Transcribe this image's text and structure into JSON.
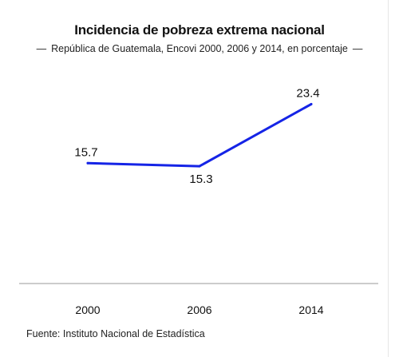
{
  "page": {
    "title": "Incidencia de pobreza extrema nacional",
    "subtitle": "República de Guatemala, Encovi 2000, 2006 y 2014, en porcentaje",
    "subtitle_dash": "—",
    "source": "Fuente: Instituto Nacional de Estadística"
  },
  "chart_data": {
    "type": "line",
    "title": "Incidencia de pobreza extrema nacional",
    "subtitle": "República de Guatemala, Encovi 2000, 2006 y 2014, en porcentaje",
    "categories": [
      "2000",
      "2006",
      "2014"
    ],
    "series": [
      {
        "values": [
          15.7,
          15.3,
          23.4
        ],
        "labels": [
          "15.7",
          "15.3",
          "23.4"
        ],
        "color": "#1524e6"
      }
    ],
    "xlabel": "",
    "ylabel": "",
    "ylim": [
      0,
      27
    ],
    "grid": false,
    "colors": {
      "line": "#1524e6",
      "baseline": "#999999"
    }
  }
}
